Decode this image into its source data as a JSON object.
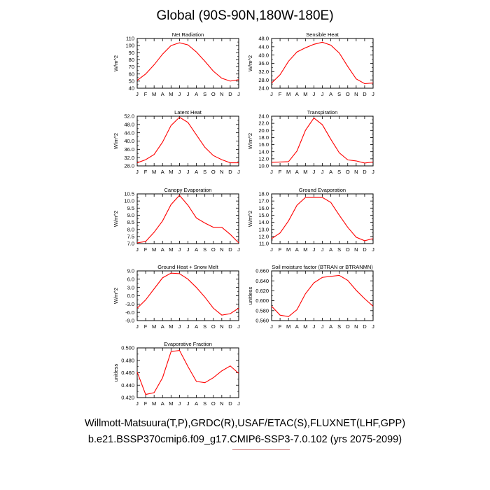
{
  "title": "Global (90S-90N,180W-180E)",
  "footer": {
    "line1": "Willmott-Matsuura(T,P),GRDC(R),USAF/ETAC(S),FLUXNET(LHF,GPP)",
    "line2": "b.e21.BSSP370cmip6.f09_g17.CMIP6-SSP3-7.0.102 (yrs 2075-2099)"
  },
  "line_color": "#ff0000",
  "months": [
    "J",
    "F",
    "M",
    "A",
    "M",
    "J",
    "J",
    "A",
    "S",
    "O",
    "N",
    "D",
    "J"
  ],
  "chart_data": [
    {
      "type": "line",
      "title": "Net Radiation",
      "ylabel": "W/m^2",
      "ylim": [
        40,
        110
      ],
      "yticks": [
        "40",
        "50",
        "60",
        "70",
        "80",
        "90",
        "100",
        "110"
      ],
      "values": [
        51,
        60,
        73,
        88,
        100,
        104,
        101,
        91,
        78,
        64,
        54,
        50,
        52
      ]
    },
    {
      "type": "line",
      "title": "Sensible Heat",
      "ylabel": "W/m^2",
      "ylim": [
        24,
        48
      ],
      "yticks": [
        "24.0",
        "28.0",
        "32.0",
        "36.0",
        "40.0",
        "44.0",
        "48.0"
      ],
      "values": [
        26.5,
        30.5,
        37,
        41.5,
        43.5,
        45.2,
        46.2,
        44.8,
        41,
        34.5,
        28.5,
        26.2,
        26.5
      ]
    },
    {
      "type": "line",
      "title": "Latent Heat",
      "ylabel": "W/m^2",
      "ylim": [
        28,
        52
      ],
      "yticks": [
        "28.0",
        "32.0",
        "36.0",
        "40.0",
        "44.0",
        "48.0",
        "52.0"
      ],
      "values": [
        29.5,
        31,
        33.5,
        39.5,
        47.5,
        51.5,
        49,
        43,
        37,
        33,
        31,
        29.5,
        29.5
      ]
    },
    {
      "type": "line",
      "title": "Transpiration",
      "ylabel": "W/m^2",
      "ylim": [
        10,
        24
      ],
      "yticks": [
        "10.0",
        "12.0",
        "14.0",
        "16.0",
        "18.0",
        "20.0",
        "22.0",
        "24.0"
      ],
      "values": [
        11,
        11.1,
        11.2,
        14.2,
        20,
        23.5,
        21.6,
        17.5,
        13.7,
        11.7,
        11.4,
        10.8,
        11.1
      ]
    },
    {
      "type": "line",
      "title": "Canopy Evaporation",
      "ylabel": "W/m^2",
      "ylim": [
        7,
        10.5
      ],
      "yticks": [
        "7.0",
        "7.5",
        "8.0",
        "8.5",
        "9.0",
        "9.5",
        "10.0",
        "10.5"
      ],
      "values": [
        7.05,
        7.15,
        7.8,
        8.6,
        9.75,
        10.4,
        9.7,
        8.8,
        8.45,
        8.15,
        8.15,
        7.65,
        7.05
      ]
    },
    {
      "type": "line",
      "title": "Ground Evaporation",
      "ylabel": "W/m^2",
      "ylim": [
        11,
        18
      ],
      "yticks": [
        "11.0",
        "12.0",
        "13.0",
        "14.0",
        "15.0",
        "16.0",
        "17.0",
        "18.0"
      ],
      "values": [
        11.7,
        12.5,
        14.2,
        16.4,
        17.5,
        17.5,
        17.5,
        16.8,
        15,
        13.3,
        11.9,
        11.4,
        11.7
      ]
    },
    {
      "type": "line",
      "title": "Ground Heat + Snow Melt",
      "ylabel": "W/m^2",
      "ylim": [
        -9,
        9
      ],
      "yticks": [
        "-9.0",
        "-6.0",
        "-3.0",
        "0.0",
        "3.0",
        "6.0",
        "9.0"
      ],
      "values": [
        -4.5,
        -1.5,
        2.5,
        6.5,
        8.2,
        8,
        6,
        3,
        -0.5,
        -4.5,
        -7,
        -6.5,
        -4.5
      ]
    },
    {
      "type": "line",
      "title": "Soil moisture factor (BTRAN or BTRANMN)",
      "ylabel": "unitless",
      "ylim": [
        0.56,
        0.66
      ],
      "yticks": [
        "0.560",
        "0.580",
        "0.600",
        "0.620",
        "0.640",
        "0.660"
      ],
      "values": [
        0.589,
        0.571,
        0.568,
        0.582,
        0.614,
        0.636,
        0.647,
        0.649,
        0.651,
        0.641,
        0.621,
        0.604,
        0.589
      ]
    },
    {
      "type": "line",
      "title": "Evaporative Fraction",
      "ylabel": "unitless",
      "ylim": [
        0.42,
        0.5
      ],
      "yticks": [
        "0.420",
        "0.440",
        "0.460",
        "0.480",
        "0.500"
      ],
      "values": [
        0.461,
        0.425,
        0.428,
        0.452,
        0.494,
        0.496,
        0.47,
        0.446,
        0.444,
        0.452,
        0.463,
        0.471,
        0.459
      ]
    }
  ]
}
